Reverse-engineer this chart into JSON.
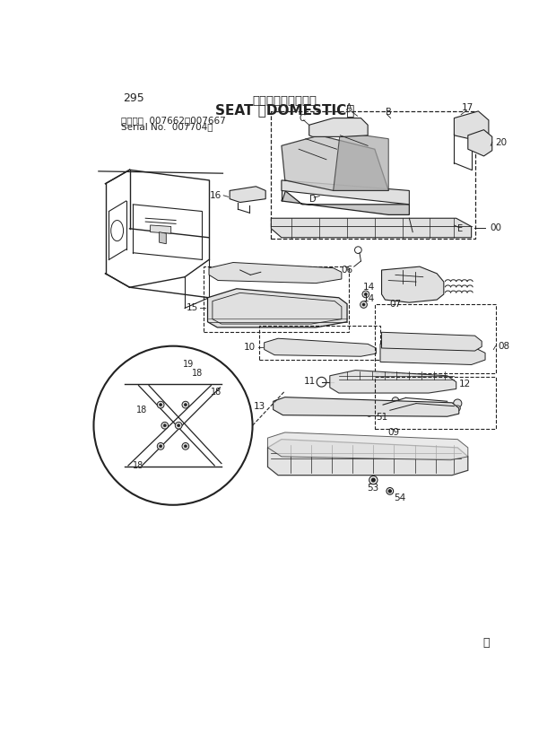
{
  "page_num": "295",
  "title_japanese": "シート〈国内仕様〉",
  "title_english": "SEAT 〈DOMESTIC〉",
  "serial_line1": "適用号機  007662～007667",
  "serial_line2": "Serial No.  007704～",
  "bg_color": "#ffffff",
  "line_color": "#222222",
  "gray_fill": "#c8c8c8",
  "light_gray": "#e0e0e0",
  "copyright_symbol": "Ⓝ"
}
